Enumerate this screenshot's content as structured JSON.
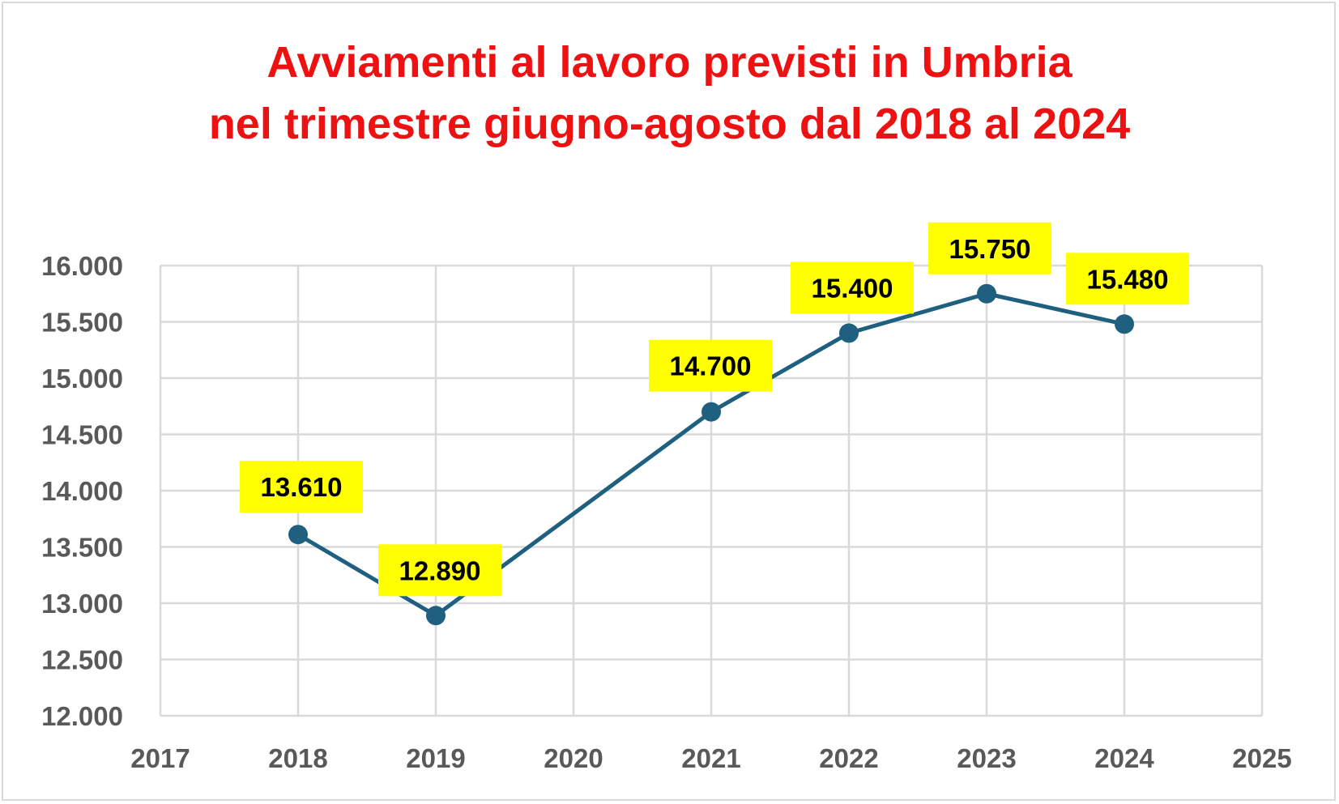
{
  "chart_data": {
    "type": "line",
    "title_lines": [
      "Avviamenti al lavoro previsti in Umbria",
      "nel trimestre giugno-agosto dal 2018 al 2024"
    ],
    "x": [
      2018,
      2019,
      2021,
      2022,
      2023,
      2024
    ],
    "y": [
      13610,
      12890,
      14700,
      15400,
      15750,
      15480
    ],
    "data_labels": [
      "13.610",
      "12.890",
      "14.700",
      "15.400",
      "15.750",
      "15.480"
    ],
    "xlim": [
      2017,
      2025
    ],
    "ylim": [
      12000,
      16000
    ],
    "x_ticks": [
      "2017",
      "2018",
      "2019",
      "2020",
      "2021",
      "2022",
      "2023",
      "2024",
      "2025"
    ],
    "y_ticks": [
      "12.000",
      "12.500",
      "13.000",
      "13.500",
      "14.000",
      "14.500",
      "15.000",
      "15.500",
      "16.000"
    ],
    "grid": true,
    "legend": "none",
    "colors": {
      "title": "#ee1111",
      "line": "#1f5f7f",
      "label_background": "#ffff00",
      "grid": "#d9d9d9",
      "tick_text": "#595959"
    }
  }
}
